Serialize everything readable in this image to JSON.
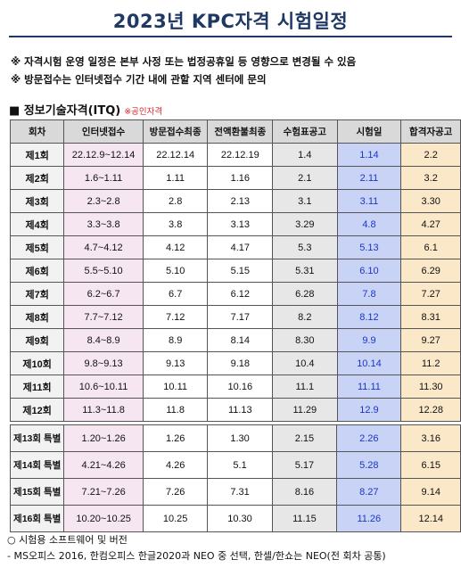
{
  "title": "2023년 KPC자격 시험일정",
  "notes": [
    "※ 자격시험 운영 일정은 본부 사정 또는 법정공휴일 등 영향으로 변경될 수 있음",
    "※ 방문접수는 인터넷접수 기간 내에 관할 지역 센터에 문의"
  ],
  "section": {
    "label": "■ 정보기술자격(ITQ)",
    "sub": "※공인자격"
  },
  "table": {
    "headers": [
      "회차",
      "인터넷접수",
      "방문접수최종",
      "전액환불최종",
      "수험표공고",
      "시험일",
      "합격자공고"
    ],
    "rows": [
      [
        "제1회",
        "22.12.9~12.14",
        "22.12.14",
        "22.12.19",
        "1.4",
        "1.14",
        "2.2"
      ],
      [
        "제2회",
        "1.6~1.11",
        "1.11",
        "1.16",
        "2.1",
        "2.11",
        "3.2"
      ],
      [
        "제3회",
        "2.3~2.8",
        "2.8",
        "2.13",
        "3.1",
        "3.11",
        "3.30"
      ],
      [
        "제4회",
        "3.3~3.8",
        "3.8",
        "3.13",
        "3.29",
        "4.8",
        "4.27"
      ],
      [
        "제5회",
        "4.7~4.12",
        "4.12",
        "4.17",
        "5.3",
        "5.13",
        "6.1"
      ],
      [
        "제6회",
        "5.5~5.10",
        "5.10",
        "5.15",
        "5.31",
        "6.10",
        "6.29"
      ],
      [
        "제7회",
        "6.2~6.7",
        "6.7",
        "6.12",
        "6.28",
        "7.8",
        "7.27"
      ],
      [
        "제8회",
        "7.7~7.12",
        "7.12",
        "7.17",
        "8.2",
        "8.12",
        "8.31"
      ],
      [
        "제9회",
        "8.4~8.9",
        "8.9",
        "8.14",
        "8.30",
        "9.9",
        "9.27"
      ],
      [
        "제10회",
        "9.8~9.13",
        "9.13",
        "9.18",
        "10.4",
        "10.14",
        "11.2"
      ],
      [
        "제11회",
        "10.6~10.11",
        "10.11",
        "10.16",
        "11.1",
        "11.11",
        "11.30"
      ],
      [
        "제12회",
        "11.3~11.8",
        "11.8",
        "11.13",
        "11.29",
        "12.9",
        "12.28"
      ]
    ],
    "special_rows": [
      [
        "제13회 특별",
        "1.20~1.26",
        "1.26",
        "1.30",
        "2.15",
        "2.26",
        "3.16"
      ],
      [
        "제14회 특별",
        "4.21~4.26",
        "4.26",
        "5.1",
        "5.17",
        "5.28",
        "6.15"
      ],
      [
        "제15회 특별",
        "7.21~7.26",
        "7.26",
        "7.31",
        "8.16",
        "8.27",
        "9.14"
      ],
      [
        "제16회 특별",
        "10.20~10.25",
        "10.25",
        "10.30",
        "11.15",
        "11.26",
        "12.14"
      ]
    ]
  },
  "footer": {
    "heading": "○ 시험용 소프트웨어 및 버전",
    "detail": "- MS오피스 2016, 한컴오피스 한글2020과 NEO 중 선택, 한셀/한쇼는 NEO(전 회차 공통)"
  }
}
